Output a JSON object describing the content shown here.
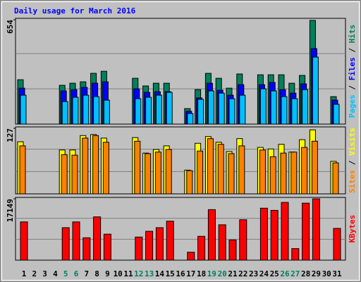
{
  "chart_data": [
    {
      "type": "bar",
      "title": "Daily usage for March 2016",
      "ylim": [
        0,
        654
      ],
      "yticks": [
        654
      ],
      "legend_separator": " / ",
      "series": [
        {
          "name": "Hits",
          "color": "#00805c",
          "values": [
            278,
            0,
            0,
            0,
            243,
            256,
            265,
            318,
            331,
            0,
            0,
            287,
            239,
            256,
            256,
            0,
            97,
            216,
            318,
            287,
            225,
            314,
            0,
            309,
            309,
            309,
            256,
            305,
            650,
            0,
            172
          ]
        },
        {
          "name": "Files",
          "color": "#0000ff",
          "values": [
            225,
            0,
            0,
            0,
            208,
            216,
            230,
            256,
            265,
            0,
            0,
            221,
            199,
            203,
            203,
            0,
            80,
            164,
            256,
            212,
            181,
            247,
            0,
            247,
            261,
            216,
            194,
            252,
            473,
            0,
            150
          ]
        },
        {
          "name": "Pages",
          "color": "#00c0ff",
          "values": [
            181,
            0,
            0,
            0,
            141,
            168,
            181,
            172,
            150,
            0,
            0,
            159,
            168,
            181,
            199,
            0,
            66,
            155,
            208,
            194,
            159,
            181,
            0,
            221,
            208,
            172,
            159,
            216,
            420,
            0,
            124
          ]
        }
      ]
    },
    {
      "type": "bar",
      "ylim": [
        0,
        127
      ],
      "yticks": [
        127
      ],
      "legend_separator": " / ",
      "series": [
        {
          "name": "Visits",
          "color": "#ffff00",
          "values": [
            101,
            0,
            0,
            0,
            85,
            85,
            113,
            115,
            108,
            0,
            0,
            109,
            79,
            86,
            93,
            0,
            46,
            98,
            111,
            100,
            82,
            107,
            0,
            90,
            87,
            96,
            81,
            105,
            124,
            0,
            63
          ]
        },
        {
          "name": "Sites",
          "color": "#ff8000",
          "values": [
            93,
            0,
            0,
            0,
            76,
            75,
            108,
            113,
            100,
            0,
            0,
            102,
            78,
            81,
            86,
            0,
            45,
            83,
            107,
            96,
            78,
            93,
            0,
            85,
            72,
            79,
            81,
            90,
            102,
            0,
            60
          ]
        }
      ]
    },
    {
      "type": "bar",
      "ylim": [
        0,
        17149
      ],
      "yticks": [
        17149
      ],
      "categories": [
        "1",
        "2",
        "3",
        "4",
        "5",
        "6",
        "7",
        "8",
        "9",
        "10",
        "11",
        "12",
        "13",
        "14",
        "15",
        "16",
        "17",
        "18",
        "19",
        "20",
        "21",
        "22",
        "23",
        "24",
        "25",
        "26",
        "27",
        "28",
        "29",
        "30",
        "31"
      ],
      "category_colors": [
        "#000000",
        "#000000",
        "#000000",
        "#000000",
        "#00805c",
        "#00805c",
        "#000000",
        "#000000",
        "#000000",
        "#000000",
        "#000000",
        "#00805c",
        "#00805c",
        "#000000",
        "#000000",
        "#000000",
        "#000000",
        "#000000",
        "#00805c",
        "#00805c",
        "#000000",
        "#000000",
        "#000000",
        "#000000",
        "#000000",
        "#00805c",
        "#00805c",
        "#000000",
        "#000000",
        "#000000",
        "#000000"
      ],
      "series": [
        {
          "name": "KBytes",
          "color": "#ff0000",
          "values": [
            10693,
            0,
            0,
            0,
            9079,
            10693,
            6254,
            12105,
            7263,
            0,
            0,
            6456,
            8070,
            9079,
            10895,
            0,
            2219,
            6658,
            14122,
            9886,
            5649,
            11298,
            0,
            14526,
            13920,
            16140,
            3228,
            15938,
            17149,
            0,
            8877
          ]
        }
      ]
    }
  ]
}
